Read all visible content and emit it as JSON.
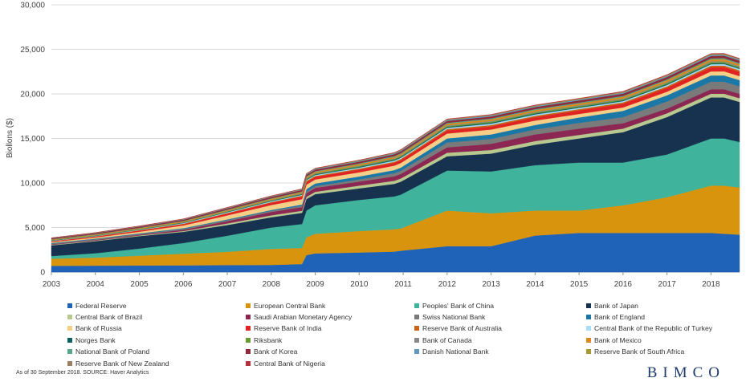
{
  "chart_data": {
    "type": "area",
    "stacked": true,
    "title": "",
    "xlabel": "",
    "ylabel": "Biollons ($)",
    "ylim": [
      0,
      30000
    ],
    "yticks": [
      0,
      5000,
      10000,
      15000,
      20000,
      25000,
      30000
    ],
    "yticklabels": [
      "0",
      "5,000",
      "10,000",
      "15,000",
      "20,000",
      "25,000",
      "30,000"
    ],
    "xlim": [
      2003,
      2018.65
    ],
    "xticks": [
      "2003",
      "2004",
      "2005",
      "2006",
      "2007",
      "2008",
      "2009",
      "2010",
      "2011",
      "2012",
      "2013",
      "2014",
      "2015",
      "2016",
      "2017",
      "2018"
    ],
    "grid": "horizontal",
    "legend_position": "bottom",
    "x": [
      2003,
      2004,
      2005,
      2006,
      2007,
      2008,
      2008.7,
      2008.8,
      2009,
      2010,
      2010.8,
      2010.95,
      2012,
      2013,
      2014,
      2015,
      2016,
      2017,
      2018,
      2018.3,
      2018.65
    ],
    "series": [
      {
        "name": "Federal Reserve",
        "color": "#1f63b8",
        "values": [
          700,
          720,
          740,
          760,
          780,
          800,
          900,
          1900,
          2100,
          2200,
          2300,
          2400,
          2900,
          2900,
          4100,
          4400,
          4400,
          4400,
          4400,
          4300,
          4200
        ]
      },
      {
        "name": "European Central Bank",
        "color": "#d9940e",
        "values": [
          800,
          900,
          1100,
          1300,
          1500,
          1800,
          1800,
          2000,
          2200,
          2400,
          2500,
          2500,
          4000,
          3700,
          2800,
          2500,
          3100,
          4000,
          5300,
          5400,
          5300
        ]
      },
      {
        "name": "Peoples' Bank of China",
        "color": "#3fb39b",
        "values": [
          300,
          500,
          800,
          1200,
          1800,
          2400,
          2700,
          3000,
          3200,
          3500,
          3700,
          3800,
          4500,
          4700,
          5100,
          5400,
          4800,
          4800,
          5300,
          5300,
          5100
        ]
      },
      {
        "name": "Bank of Japan",
        "color": "#17324f",
        "values": [
          1200,
          1350,
          1400,
          1250,
          1200,
          1150,
          1250,
          1300,
          1250,
          1300,
          1400,
          1450,
          1600,
          2000,
          2300,
          2700,
          3400,
          4200,
          4600,
          4600,
          4500
        ]
      },
      {
        "name": "Central Bank of Brazil",
        "color": "#b7c98f",
        "values": [
          50,
          60,
          70,
          90,
          180,
          220,
          230,
          240,
          260,
          300,
          350,
          360,
          400,
          400,
          400,
          400,
          400,
          420,
          420,
          420,
          410
        ]
      },
      {
        "name": "Saudi Arabian Monetary Agency",
        "color": "#8b2752",
        "values": [
          60,
          70,
          80,
          150,
          250,
          380,
          420,
          420,
          440,
          450,
          500,
          510,
          600,
          700,
          750,
          700,
          600,
          520,
          500,
          500,
          500
        ]
      },
      {
        "name": "Swiss National Bank",
        "color": "#7a7a7a",
        "values": [
          100,
          100,
          100,
          110,
          120,
          130,
          140,
          150,
          200,
          250,
          350,
          360,
          550,
          550,
          560,
          650,
          700,
          800,
          850,
          850,
          840
        ]
      },
      {
        "name": "Bank of England",
        "color": "#1b78a6",
        "values": [
          60,
          60,
          60,
          70,
          80,
          90,
          150,
          300,
          300,
          330,
          350,
          360,
          450,
          500,
          500,
          600,
          700,
          700,
          700,
          700,
          700
        ]
      },
      {
        "name": "Bank of Russia",
        "color": "#f5cf87",
        "values": [
          100,
          120,
          180,
          300,
          450,
          550,
          600,
          500,
          450,
          470,
          500,
          510,
          550,
          550,
          500,
          400,
          380,
          400,
          450,
          460,
          450
        ]
      },
      {
        "name": "Reserve Bank of India",
        "color": "#e02424",
        "values": [
          80,
          100,
          130,
          160,
          220,
          280,
          300,
          280,
          290,
          300,
          320,
          330,
          350,
          350,
          380,
          400,
          420,
          450,
          480,
          490,
          480
        ]
      },
      {
        "name": "Reserve Bank of Australia",
        "color": "#c8651b",
        "values": [
          30,
          35,
          40,
          45,
          55,
          60,
          100,
          150,
          100,
          110,
          120,
          125,
          150,
          150,
          150,
          150,
          150,
          160,
          170,
          170,
          170
        ]
      },
      {
        "name": "Central Bank of the Republic of Turkey",
        "color": "#a8dff5",
        "values": [
          30,
          35,
          45,
          60,
          80,
          90,
          90,
          90,
          100,
          110,
          120,
          125,
          140,
          160,
          150,
          140,
          140,
          150,
          160,
          160,
          150
        ]
      },
      {
        "name": "Norges Bank",
        "color": "#0f5f61",
        "values": [
          30,
          35,
          40,
          45,
          50,
          60,
          70,
          80,
          80,
          90,
          100,
          100,
          110,
          110,
          110,
          100,
          100,
          110,
          110,
          110,
          110
        ]
      },
      {
        "name": "Riksbank",
        "color": "#6b9a35",
        "values": [
          30,
          35,
          40,
          45,
          50,
          60,
          70,
          80,
          90,
          100,
          100,
          100,
          100,
          110,
          110,
          110,
          110,
          120,
          120,
          120,
          120
        ]
      },
      {
        "name": "Bank of Canada",
        "color": "#8a8a8a",
        "values": [
          30,
          30,
          30,
          30,
          35,
          40,
          50,
          60,
          60,
          65,
          70,
          70,
          80,
          80,
          80,
          80,
          85,
          90,
          95,
          95,
          95
        ]
      },
      {
        "name": "Bank of Mexico",
        "color": "#d98a1c",
        "values": [
          60,
          70,
          80,
          90,
          100,
          110,
          120,
          130,
          130,
          150,
          160,
          165,
          180,
          190,
          200,
          200,
          200,
          210,
          220,
          220,
          215
        ]
      },
      {
        "name": "National Bank of Poland",
        "color": "#57a58a",
        "values": [
          30,
          35,
          40,
          45,
          55,
          60,
          65,
          70,
          75,
          80,
          90,
          90,
          100,
          100,
          105,
          100,
          100,
          110,
          120,
          120,
          120
        ]
      },
      {
        "name": "Bank of Korea",
        "color": "#8e2a3c",
        "values": [
          100,
          110,
          120,
          130,
          150,
          160,
          170,
          170,
          180,
          190,
          200,
          200,
          210,
          220,
          230,
          240,
          250,
          260,
          270,
          270,
          270
        ]
      },
      {
        "name": "Danish National Bank",
        "color": "#5f98c0",
        "values": [
          20,
          25,
          30,
          35,
          40,
          45,
          50,
          60,
          70,
          80,
          90,
          95,
          100,
          100,
          100,
          100,
          110,
          110,
          110,
          110,
          110
        ]
      },
      {
        "name": "Reserve Bank of South Africa",
        "color": "#a79a34",
        "values": [
          20,
          22,
          25,
          28,
          30,
          35,
          38,
          40,
          42,
          45,
          48,
          50,
          52,
          54,
          56,
          58,
          60,
          62,
          64,
          64,
          64
        ]
      },
      {
        "name": "Reserve Bank of New Zealand",
        "color": "#9a8063",
        "values": [
          10,
          10,
          12,
          14,
          16,
          18,
          20,
          22,
          24,
          26,
          28,
          30,
          32,
          34,
          36,
          38,
          40,
          42,
          44,
          44,
          44
        ]
      },
      {
        "name": "Central Bank of Nigeria",
        "color": "#b5303c",
        "values": [
          10,
          12,
          14,
          16,
          18,
          20,
          22,
          24,
          26,
          28,
          30,
          32,
          34,
          36,
          38,
          40,
          42,
          44,
          46,
          46,
          46
        ]
      }
    ]
  },
  "source_note": "As of 30 September 2018. SOURCE: Haver Analytics",
  "logo_text": "BIMCO"
}
